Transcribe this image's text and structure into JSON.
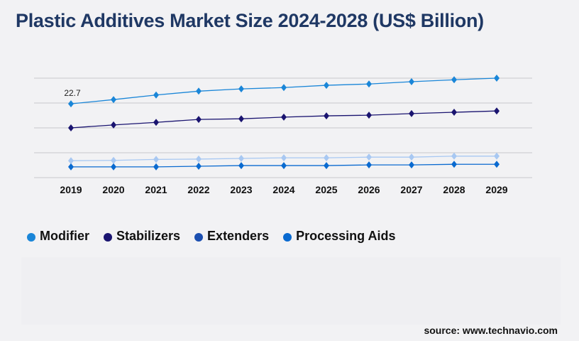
{
  "title": "Plastic Additives Market Size 2024-2028 (US$ Billion)",
  "source": "source: www.technavio.com",
  "chart_data": {
    "type": "line",
    "categories": [
      "2019",
      "2020",
      "2021",
      "2022",
      "2023",
      "2024",
      "2025",
      "2026",
      "2027",
      "2028",
      "2029"
    ],
    "ylim": [
      0,
      30.6
    ],
    "grid": true,
    "legend_position": "bottom-left",
    "annotations": [
      {
        "series": "Modifier",
        "category": "2019",
        "text": "22.7"
      }
    ],
    "series": [
      {
        "name": "Modifier",
        "color": "#1a86d8",
        "line_color": "#1a86d8",
        "values": [
          22.7,
          24.0,
          25.4,
          26.6,
          27.3,
          27.7,
          28.4,
          28.8,
          29.5,
          30.1,
          30.6
        ]
      },
      {
        "name": "Stabilizers",
        "color": "#1a1470",
        "line_color": "#1a1470",
        "values": [
          15.3,
          16.2,
          17.0,
          17.9,
          18.1,
          18.6,
          19.0,
          19.2,
          19.7,
          20.1,
          20.5
        ]
      },
      {
        "name": "Extenders",
        "color": "#1c4fb0",
        "line_color": "#a8c8f2",
        "values": [
          5.2,
          5.3,
          5.6,
          5.7,
          5.9,
          6.1,
          6.1,
          6.3,
          6.3,
          6.6,
          6.6
        ]
      },
      {
        "name": "Processing Aids",
        "color": "#0a6ad0",
        "line_color": "#0a6ad0",
        "values": [
          3.3,
          3.3,
          3.3,
          3.5,
          3.7,
          3.7,
          3.7,
          3.9,
          3.9,
          4.1,
          4.1
        ]
      }
    ]
  }
}
